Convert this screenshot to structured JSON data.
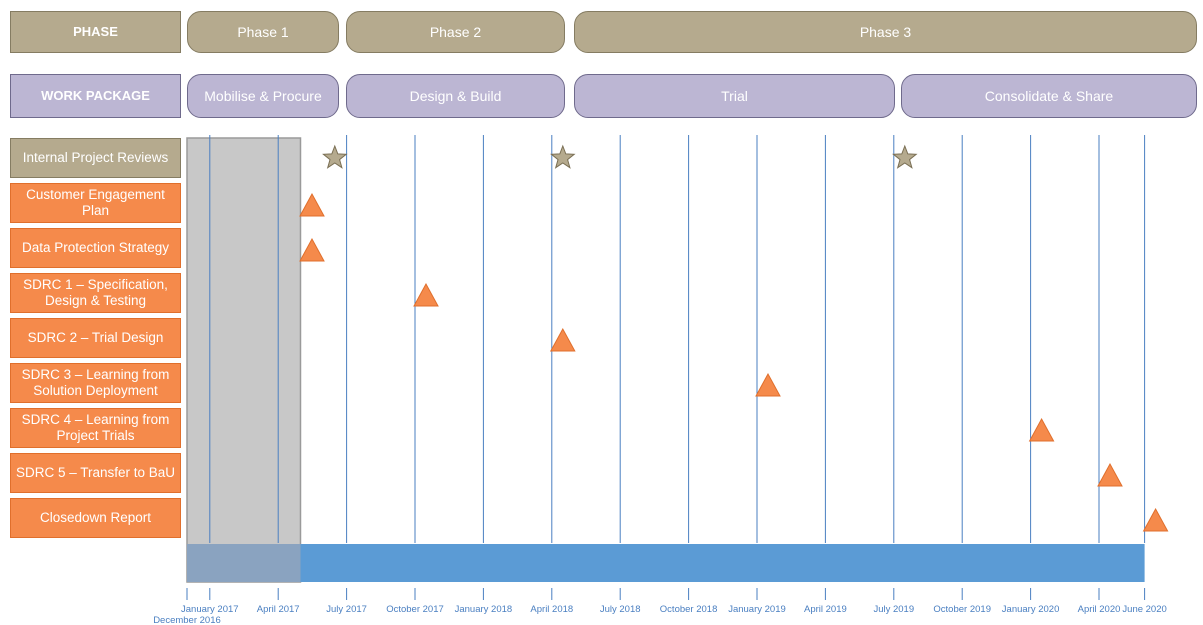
{
  "header": {
    "phase_label": "PHASE",
    "work_package_label": "WORK PACKAGE"
  },
  "phases": [
    {
      "label": "Phase 1"
    },
    {
      "label": "Phase 2"
    },
    {
      "label": "Phase 3"
    }
  ],
  "work_packages": [
    {
      "label": "Mobilise & Procure"
    },
    {
      "label": "Design & Build"
    },
    {
      "label": "Trial"
    },
    {
      "label": "Consolidate & Share"
    }
  ],
  "rows": [
    {
      "label": "Internal Project Reviews",
      "kind": "review",
      "markers": [
        "2017-06",
        "2018-04",
        "2019-07"
      ],
      "marker_icon": "star-icon"
    },
    {
      "label": "Customer Engagement Plan",
      "kind": "deliverable",
      "markers": [
        "2017-05"
      ],
      "marker_icon": "triangle-icon"
    },
    {
      "label": "Data Protection Strategy",
      "kind": "deliverable",
      "markers": [
        "2017-05"
      ],
      "marker_icon": "triangle-icon"
    },
    {
      "label": "SDRC 1 – Specification, Design & Testing",
      "kind": "deliverable",
      "markers": [
        "2017-10"
      ],
      "marker_icon": "triangle-icon"
    },
    {
      "label": "SDRC 2 – Trial Design",
      "kind": "deliverable",
      "markers": [
        "2018-04"
      ],
      "marker_icon": "triangle-icon"
    },
    {
      "label": "SDRC 3 – Learning from Solution Deployment",
      "kind": "deliverable",
      "markers": [
        "2019-01"
      ],
      "marker_icon": "triangle-icon"
    },
    {
      "label": "SDRC 4 – Learning from Project Trials",
      "kind": "deliverable",
      "markers": [
        "2020-01"
      ],
      "marker_icon": "triangle-icon"
    },
    {
      "label": "SDRC 5 – Transfer to BaU",
      "kind": "deliverable",
      "markers": [
        "2020-04"
      ],
      "marker_icon": "triangle-icon"
    },
    {
      "label": "Closedown Report",
      "kind": "deliverable",
      "markers": [
        "2020-06"
      ],
      "marker_icon": "triangle-icon"
    }
  ],
  "axis": {
    "start": "December 2016",
    "end": "June 2020",
    "ticks": [
      "December 2016",
      "January 2017",
      "April 2017",
      "July 2017",
      "October 2017",
      "January 2018",
      "April 2018",
      "July 2018",
      "October 2018",
      "January 2019",
      "April 2019",
      "July 2019",
      "October 2019",
      "January 2020",
      "April 2020",
      "June 2020"
    ]
  },
  "colors": {
    "phase": "#b5aa8e",
    "work_package": "#bcb6d3",
    "deliverable": "#f58a4b",
    "gridline": "#4a7fc1",
    "timeline_bar": "#5b9bd5",
    "shaded_period": "#c8c8c8",
    "star": "#b5aa8e",
    "triangle": "#f58a4b"
  }
}
